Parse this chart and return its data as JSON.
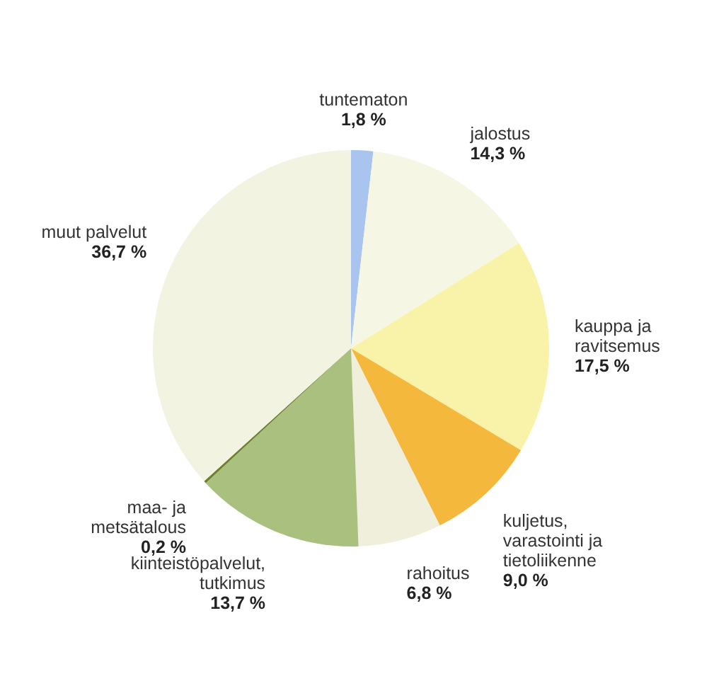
{
  "chart_data": {
    "type": "pie",
    "categories": [
      "tuntematon",
      "jalostus",
      "kauppa ja ravitsemus",
      "kuljetus, varastointi ja tietoliikenne",
      "rahoitus",
      "kiinteistöpalvelut, tutkimus",
      "maa- ja metsätalous",
      "muut palvelut"
    ],
    "values": [
      1.8,
      14.3,
      17.5,
      9.0,
      6.8,
      13.7,
      0.2,
      36.7
    ],
    "value_labels": [
      "1,8 %",
      "14,3 %",
      "17,5 %",
      "9,0 %",
      "6,8 %",
      "13,7 %",
      "0,2 %",
      "36,7 %"
    ],
    "colors": [
      "#a9c4ee",
      "#f6f6e4",
      "#f8f3a8",
      "#f4b93c",
      "#efefdc",
      "#a9c07e",
      "#6f7f2e",
      "#f3f3e2"
    ]
  }
}
